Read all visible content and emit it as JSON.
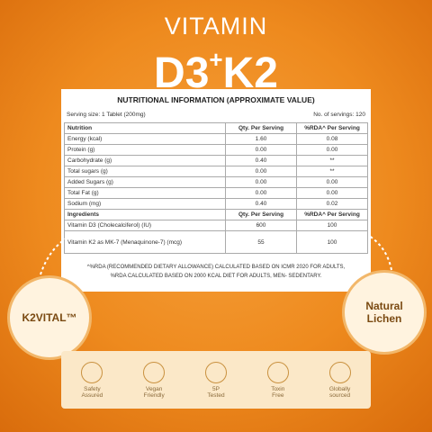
{
  "title": {
    "line1": "VITAMIN",
    "main1": "D3",
    "plus": "+",
    "main2": "K2"
  },
  "table": {
    "title": "NUTRITIONAL INFORMATION (APPROXIMATE VALUE)",
    "serving_size": "Serving size:  1 Tablet (200mg)",
    "servings": "No. of servings: 120",
    "header": [
      "Nutrition",
      "Qty. Per Serving",
      "%RDA^ Per Serving"
    ],
    "rows": [
      [
        "Energy (kcal)",
        "1.60",
        "0.08"
      ],
      [
        "Protein (g)",
        "0.00",
        "0.00"
      ],
      [
        "Carbohydrate (g)",
        "0.40",
        "**"
      ],
      [
        "Total sugars (g)",
        "0.00",
        "**"
      ],
      [
        "Added Sugars (g)",
        "0.00",
        "0.00"
      ],
      [
        "Total Fat (g)",
        "0.00",
        "0.00"
      ],
      [
        "Sodium (mg)",
        "0.40",
        "0.02"
      ]
    ],
    "ingredients_header": [
      "Ingredients",
      "Qty. Per Serving",
      "%RDA^ Per Serving"
    ],
    "ingredient_rows": [
      [
        "Vitamin D3 (Cholecalciferol) (IU)",
        "600",
        "100"
      ],
      [
        "Vitamin K2 as MK-7 (Menaquinone-7) (mcg)",
        "55",
        "100"
      ]
    ],
    "footnote": [
      "^%RDA (RECOMMENDED DIETARY ALLOWANCE) CALCULATED BASED ON ICMR 2020 FOR ADULTS,",
      "%RDA CALCULATED BASED ON 2000 KCAL DIET FOR ADULTS, MEN- SEDENTARY."
    ]
  },
  "badges": {
    "left": "K2VITAL™",
    "right": [
      "Natural",
      "Lichen"
    ]
  },
  "features": [
    [
      "Safety",
      "Assured"
    ],
    [
      "Vegan",
      "Friendly"
    ],
    [
      "5P",
      "Tested"
    ],
    [
      "Toxin",
      "Free"
    ],
    [
      "Globally",
      "sourced"
    ]
  ]
}
